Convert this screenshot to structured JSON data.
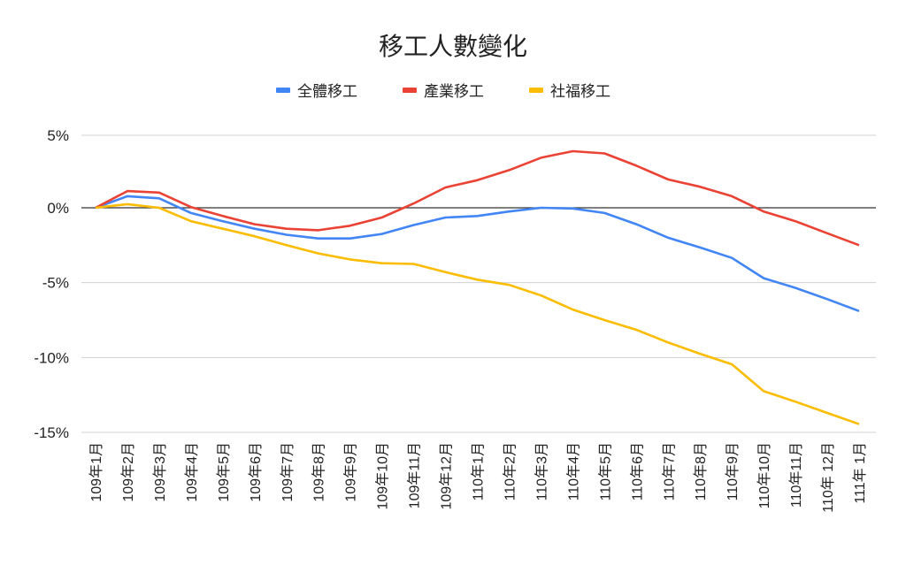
{
  "chart_data": {
    "type": "line",
    "title": "移工人數變化",
    "xlabel": "",
    "ylabel": "",
    "ylim": [
      -15,
      5
    ],
    "yticks": [
      5,
      0,
      -5,
      -10,
      -15
    ],
    "ytick_labels": [
      "5%",
      "0%",
      "-5%",
      "-10%",
      "-15%"
    ],
    "grid": true,
    "legend": "top",
    "categories": [
      "109年1月",
      "109年2月",
      "109年3月",
      "109年4月",
      "109年5月",
      "109年6月",
      "109年7月",
      "109年8月",
      "109年9月",
      "109年10月",
      "109年11月",
      "109年12月",
      "110年1月",
      "110年2月",
      "110年3月",
      "110年4月",
      "110年5月",
      "110年6月",
      "110年7月",
      "110年8月",
      "110年9月",
      "110年10月",
      "110年11月",
      "110年 12月",
      "111年 1月"
    ],
    "series": [
      {
        "name": "全體移工",
        "color": "#4285f4",
        "values": [
          0,
          0.8,
          0.65,
          -0.35,
          -0.9,
          -1.4,
          -1.8,
          -2.05,
          -2.05,
          -1.75,
          -1.15,
          -0.65,
          -0.55,
          -0.25,
          0,
          -0.05,
          -0.35,
          -1.1,
          -2.0,
          -2.65,
          -3.35,
          -4.7,
          -5.35,
          -6.1,
          -6.9
        ]
      },
      {
        "name": "產業移工",
        "color": "#ea4335",
        "values": [
          0,
          1.15,
          1.05,
          0.05,
          -0.55,
          -1.1,
          -1.4,
          -1.5,
          -1.2,
          -0.65,
          0.3,
          1.4,
          1.9,
          2.6,
          3.45,
          3.9,
          3.75,
          2.9,
          1.95,
          1.45,
          0.8,
          -0.25,
          -0.9,
          -1.7,
          -2.5
        ]
      },
      {
        "name": "社福移工",
        "color": "#fbbc04",
        "values": [
          0,
          0.25,
          0,
          -0.9,
          -1.4,
          -1.9,
          -2.5,
          -3.05,
          -3.45,
          -3.7,
          -3.75,
          -4.3,
          -4.8,
          -5.15,
          -5.85,
          -6.8,
          -7.5,
          -8.15,
          -9.0,
          -9.75,
          -10.45,
          -12.25,
          -12.95,
          -13.7,
          -14.45
        ]
      }
    ]
  }
}
